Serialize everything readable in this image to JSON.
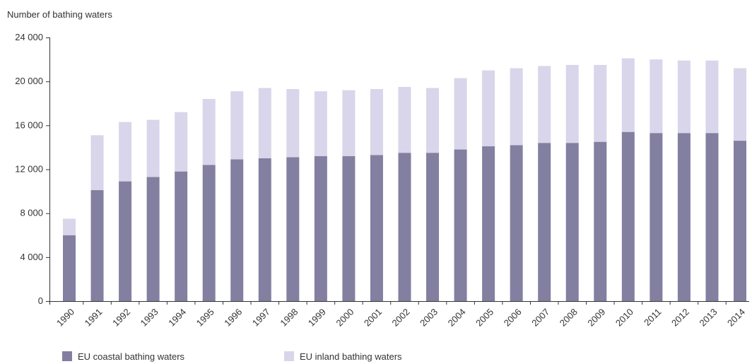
{
  "chart_data": {
    "type": "bar",
    "stacked": true,
    "title": "",
    "xlabel": "",
    "ylabel": "Number of bathing waters",
    "ylim": [
      0,
      24000
    ],
    "yticks": [
      0,
      4000,
      8000,
      12000,
      16000,
      20000,
      24000
    ],
    "ytick_labels": [
      "0",
      "4 000",
      "8 000",
      "12 000",
      "16 000",
      "20 000",
      "24 000"
    ],
    "grid": false,
    "legend_position": "bottom-left",
    "categories": [
      "1990",
      "1991",
      "1992",
      "1993",
      "1994",
      "1995",
      "1996",
      "1997",
      "1998",
      "1999",
      "2000",
      "2001",
      "2002",
      "2003",
      "2004",
      "2005",
      "2006",
      "2007",
      "2008",
      "2009",
      "2010",
      "2011",
      "2012",
      "2013",
      "2014"
    ],
    "series": [
      {
        "name": "EU coastal bathing waters",
        "color": "#827fa0",
        "values": [
          6000,
          10100,
          10900,
          11300,
          11800,
          12400,
          12900,
          13000,
          13100,
          13200,
          13200,
          13300,
          13500,
          13500,
          13800,
          14100,
          14200,
          14400,
          14400,
          14500,
          15400,
          15300,
          15300,
          15300,
          14600
        ]
      },
      {
        "name": "EU inland bathing waters",
        "color": "#d9d5ea",
        "values": [
          1500,
          5000,
          5400,
          5200,
          5400,
          6000,
          6200,
          6400,
          6200,
          5900,
          6000,
          6000,
          6000,
          5900,
          6500,
          6900,
          7000,
          7000,
          7100,
          7000,
          6700,
          6700,
          6600,
          6600,
          6600
        ]
      }
    ]
  }
}
